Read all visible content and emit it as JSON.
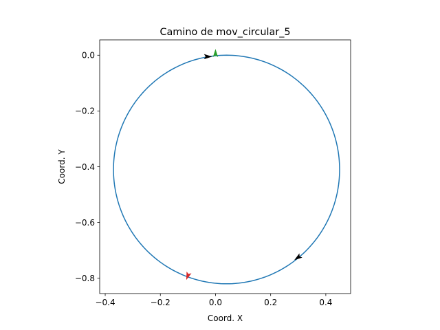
{
  "chart_data": {
    "type": "line",
    "title": "Camino de mov_circular_5",
    "xlabel": "Coord. X",
    "ylabel": "Coord. Y",
    "xlim": [
      -0.42,
      0.49
    ],
    "ylim": [
      -0.855,
      0.055
    ],
    "xticks": [
      -0.4,
      -0.2,
      0.0,
      0.2,
      0.4
    ],
    "xtick_labels": [
      "−0.4",
      "−0.2",
      "0.0",
      "0.2",
      "0.4"
    ],
    "yticks": [
      0.0,
      -0.2,
      -0.4,
      -0.6,
      -0.8
    ],
    "ytick_labels": [
      "0.0",
      "−0.2",
      "−0.4",
      "−0.6",
      "−0.8"
    ],
    "grid": false,
    "aspect": "equal",
    "series": [
      {
        "path": "circle",
        "center": [
          0.04,
          -0.41
        ],
        "radius": 0.41,
        "color": "#1f77b4"
      }
    ],
    "markers": [
      {
        "kind": "start-marker",
        "x": 0.0,
        "y": 0.005,
        "dir": 90,
        "color": "#2ca02c"
      },
      {
        "kind": "direction-arrow",
        "x": -0.03,
        "y": -0.005,
        "dir": 0,
        "color": "#000000"
      },
      {
        "kind": "direction-arrow",
        "x": 0.3,
        "y": -0.725,
        "dir": 215,
        "color": "#000000"
      },
      {
        "kind": "end-marker",
        "x": -0.1,
        "y": -0.79,
        "dir": 250,
        "color": "#d62728"
      }
    ]
  }
}
